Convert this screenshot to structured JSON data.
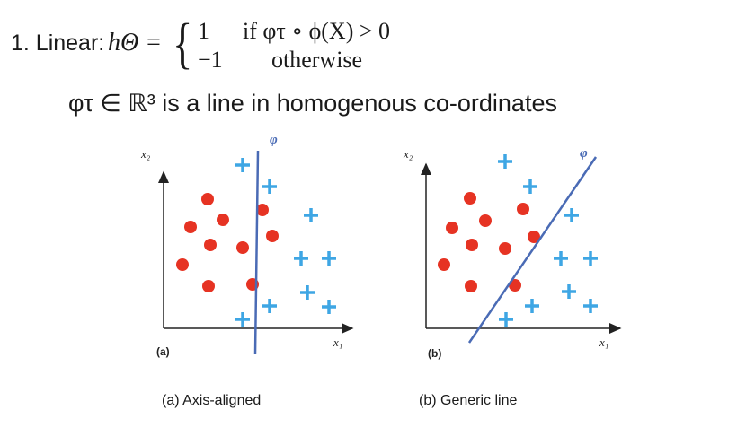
{
  "heading": {
    "prefix": "1. Linear:",
    "function": "hΘ =",
    "case1_value": "1",
    "case1_condition": "if φτ ∘ ϕ(X) > 0",
    "case2_value": "−1",
    "case2_condition": "otherwise"
  },
  "description": "φτ ∈ ℝ³ is a line in homogenous co-ordinates",
  "colors": {
    "point_red": "#e63323",
    "plus_blue": "#3ea6e4",
    "line_blue": "#4a6bb5",
    "axis": "#222222"
  },
  "diagrams": [
    {
      "id": "a",
      "panel_label": "(a)",
      "caption": "(a) Axis-aligned",
      "x_axis_label": "x₁",
      "y_axis_label": "x₂",
      "line_label": "φ",
      "line_type": "vertical",
      "marker_legend": {
        "circle": "red class",
        "plus": "blue class"
      },
      "circles": 11,
      "pluses": 10
    },
    {
      "id": "b",
      "panel_label": "(b)",
      "caption": "(b) Generic line",
      "x_axis_label": "x₁",
      "y_axis_label": "x₂",
      "line_label": "φ",
      "line_type": "diagonal",
      "circles": 11,
      "pluses": 10
    }
  ]
}
